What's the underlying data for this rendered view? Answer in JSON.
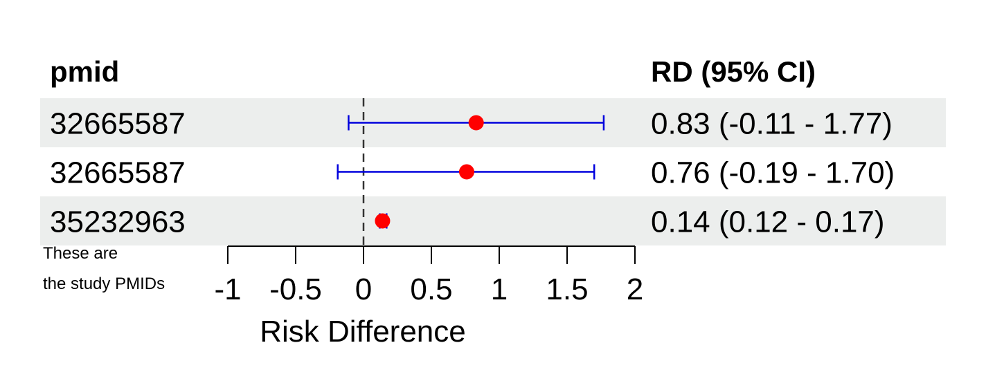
{
  "chart_data": {
    "type": "forest",
    "columns": {
      "left_header": "pmid",
      "right_header": "RD (95% CI)"
    },
    "rows": [
      {
        "pmid": "32665587",
        "estimate": 0.83,
        "lower": -0.11,
        "upper": 1.77,
        "label": "0.83 (-0.11 - 1.77)"
      },
      {
        "pmid": "32665587",
        "estimate": 0.76,
        "lower": -0.19,
        "upper": 1.7,
        "label": "0.76 (-0.19 - 1.70)"
      },
      {
        "pmid": "35232963",
        "estimate": 0.14,
        "lower": 0.12,
        "upper": 0.17,
        "label": "0.14 (0.12 - 0.17)"
      }
    ],
    "xlim": [
      -1,
      2
    ],
    "xticks": [
      -1,
      -0.5,
      0,
      0.5,
      1,
      1.5,
      2
    ],
    "xtick_labels": [
      "-1",
      "-0.5",
      "0",
      "0.5",
      "1",
      "1.5",
      "2"
    ],
    "xlabel": "Risk Difference",
    "reference_line": 0,
    "footnote": [
      "These are",
      "the study PMIDs"
    ],
    "colors": {
      "point": "#ff0000",
      "ci_line": "#0000dd",
      "row_shade": "#eceeed",
      "reference": "#333333"
    }
  }
}
